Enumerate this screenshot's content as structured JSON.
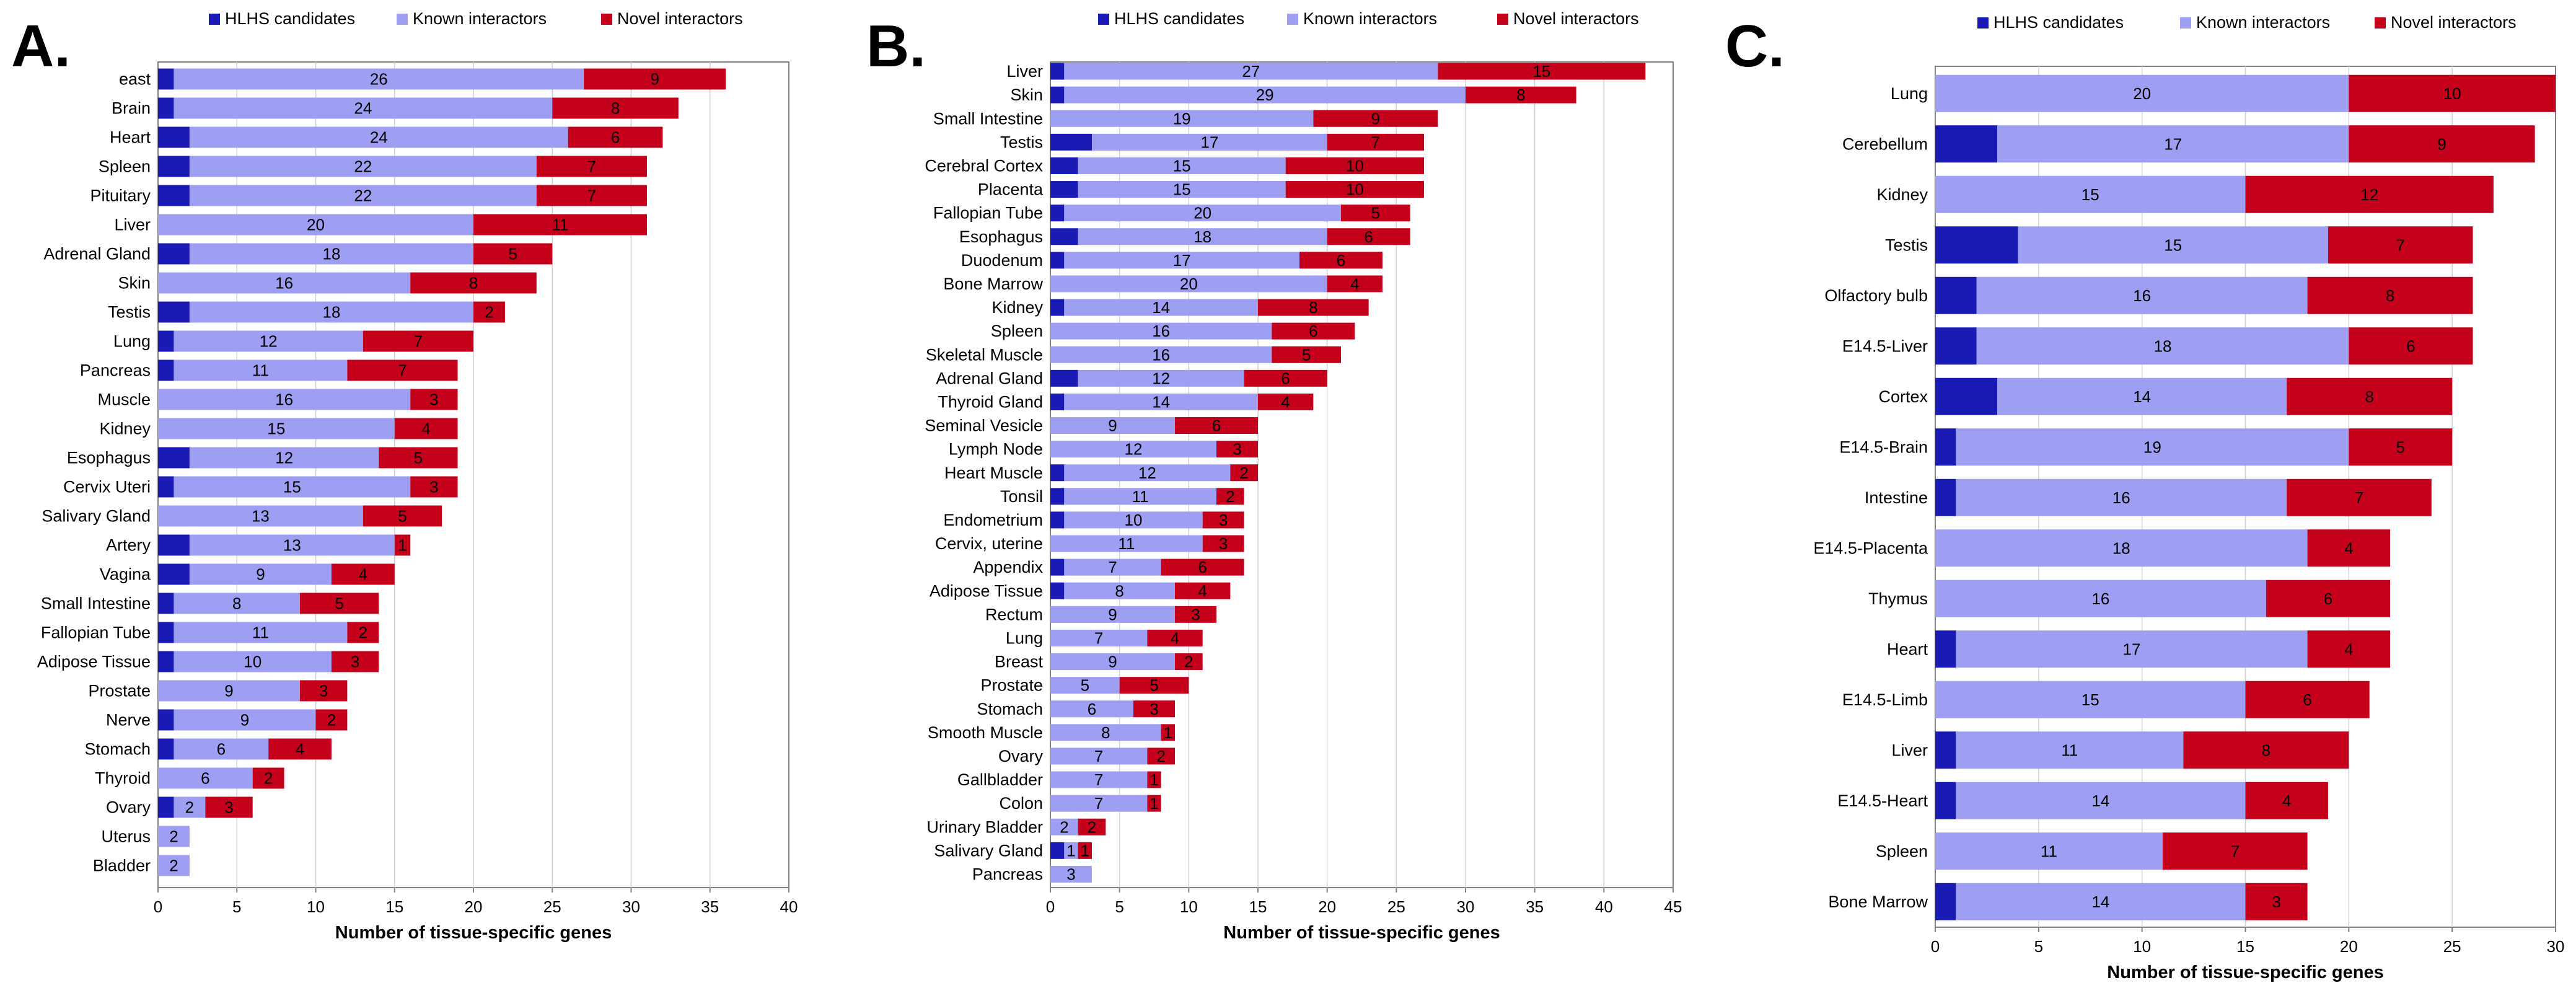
{
  "colors": {
    "hlhs": "#1a1ab4",
    "known": "#9e9ef2",
    "novel": "#c5001a",
    "grid": "#d0d0d0",
    "axis": "#7f7f7f"
  },
  "legend_labels": [
    "HLHS candidates",
    "Known interactors",
    "Novel interactors"
  ],
  "chart_data": [
    {
      "panel": "A.",
      "type": "bar",
      "orientation": "horizontal",
      "stacked": true,
      "xlabel": "Number of tissue-specific genes",
      "xlim": [
        0,
        40
      ],
      "xticks": [
        0,
        5,
        10,
        15,
        20,
        25,
        30,
        35,
        40
      ],
      "categories": [
        "east",
        "Brain",
        "Heart",
        "Spleen",
        "Pituitary",
        "Liver",
        "Adrenal Gland",
        "Skin",
        "Testis",
        "Lung",
        "Pancreas",
        "Muscle",
        "Kidney",
        "Esophagus",
        "Cervix Uteri",
        "Salivary Gland",
        "Artery",
        "Vagina",
        "Small Intestine",
        "Fallopian Tube",
        "Adipose Tissue",
        "Prostate",
        "Nerve",
        "Stomach",
        "Thyroid",
        "Ovary",
        "Uterus",
        "Bladder"
      ],
      "series": [
        {
          "name": "HLHS candidates",
          "values": [
            1,
            1,
            2,
            2,
            2,
            0,
            2,
            0,
            2,
            1,
            1,
            0,
            0,
            2,
            1,
            0,
            2,
            2,
            1,
            1,
            1,
            0,
            1,
            1,
            0,
            1,
            0,
            0
          ]
        },
        {
          "name": "Known interactors",
          "values": [
            26,
            24,
            24,
            22,
            22,
            20,
            18,
            16,
            18,
            12,
            11,
            16,
            15,
            12,
            15,
            13,
            13,
            9,
            8,
            11,
            10,
            9,
            9,
            6,
            6,
            2,
            2,
            2
          ]
        },
        {
          "name": "Novel interactors",
          "values": [
            9,
            8,
            6,
            7,
            7,
            11,
            5,
            8,
            2,
            7,
            7,
            3,
            4,
            5,
            3,
            5,
            1,
            4,
            5,
            2,
            3,
            3,
            2,
            4,
            2,
            3,
            0,
            0
          ]
        }
      ]
    },
    {
      "panel": "B.",
      "type": "bar",
      "orientation": "horizontal",
      "stacked": true,
      "xlabel": "Number of tissue-specific genes",
      "xlim": [
        0,
        45
      ],
      "xticks": [
        0,
        5,
        10,
        15,
        20,
        25,
        30,
        35,
        40,
        45
      ],
      "categories": [
        "Liver",
        "Skin",
        "Small Intestine",
        "Testis",
        "Cerebral Cortex",
        "Placenta",
        "Fallopian Tube",
        "Esophagus",
        "Duodenum",
        "Bone Marrow",
        "Kidney",
        "Spleen",
        "Skeletal Muscle",
        "Adrenal Gland",
        "Thyroid Gland",
        "Seminal Vesicle",
        "Lymph Node",
        "Heart Muscle",
        "Tonsil",
        "Endometrium",
        "Cervix, uterine",
        "Appendix",
        "Adipose Tissue",
        "Rectum",
        "Lung",
        "Breast",
        "Prostate",
        "Stomach",
        "Smooth Muscle",
        "Ovary",
        "Gallbladder",
        "Colon",
        "Urinary Bladder",
        "Salivary Gland",
        "Pancreas"
      ],
      "series": [
        {
          "name": "HLHS candidates",
          "values": [
            1,
            1,
            0,
            3,
            2,
            2,
            1,
            2,
            1,
            0,
            1,
            0,
            0,
            2,
            1,
            0,
            0,
            1,
            1,
            1,
            0,
            1,
            1,
            0,
            0,
            0,
            0,
            0,
            0,
            0,
            0,
            0,
            0,
            1,
            0
          ]
        },
        {
          "name": "Known interactors",
          "values": [
            27,
            29,
            19,
            17,
            15,
            15,
            20,
            18,
            17,
            20,
            14,
            16,
            16,
            12,
            14,
            9,
            12,
            12,
            11,
            10,
            11,
            7,
            8,
            9,
            7,
            9,
            5,
            6,
            8,
            7,
            7,
            7,
            2,
            1,
            3
          ]
        },
        {
          "name": "Novel interactors",
          "values": [
            15,
            8,
            9,
            7,
            10,
            10,
            5,
            6,
            6,
            4,
            8,
            6,
            5,
            6,
            4,
            6,
            3,
            2,
            2,
            3,
            3,
            6,
            4,
            3,
            4,
            2,
            5,
            3,
            1,
            2,
            1,
            1,
            2,
            1,
            0
          ]
        }
      ]
    },
    {
      "panel": "C.",
      "type": "bar",
      "orientation": "horizontal",
      "stacked": true,
      "xlabel": "Number of tissue-specific genes",
      "xlim": [
        0,
        30
      ],
      "xticks": [
        0,
        5,
        10,
        15,
        20,
        25,
        30
      ],
      "categories": [
        "Lung",
        "Cerebellum",
        "Kidney",
        "Testis",
        "Olfactory bulb",
        "E14.5-Liver",
        "Cortex",
        "E14.5-Brain",
        "Intestine",
        "E14.5-Placenta",
        "Thymus",
        "Heart",
        "E14.5-Limb",
        "Liver",
        "E14.5-Heart",
        "Spleen",
        "Bone Marrow"
      ],
      "series": [
        {
          "name": "HLHS candidates",
          "values": [
            0,
            3,
            0,
            4,
            2,
            2,
            3,
            1,
            1,
            0,
            0,
            1,
            0,
            1,
            1,
            0,
            1
          ]
        },
        {
          "name": "Known interactors",
          "values": [
            20,
            17,
            15,
            15,
            16,
            18,
            14,
            19,
            16,
            18,
            16,
            17,
            15,
            11,
            14,
            11,
            14
          ]
        },
        {
          "name": "Novel interactors",
          "values": [
            10,
            9,
            12,
            7,
            8,
            6,
            8,
            5,
            7,
            4,
            6,
            4,
            6,
            8,
            4,
            7,
            3
          ]
        }
      ]
    }
  ]
}
